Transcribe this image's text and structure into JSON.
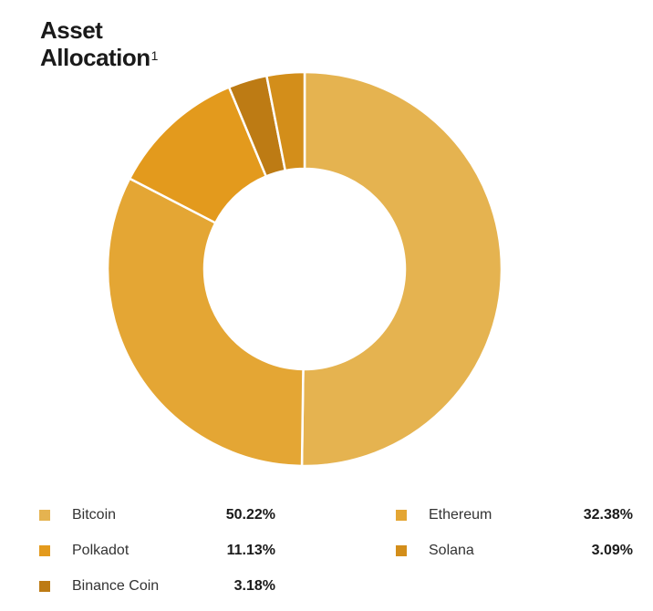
{
  "title": {
    "line1": "Asset",
    "line2": "Allocation",
    "footnote": "1"
  },
  "chart_data": {
    "type": "pie",
    "donut": true,
    "title": "Asset Allocation",
    "categories": [
      "Bitcoin",
      "Ethereum",
      "Polkadot",
      "Solana",
      "Binance Coin"
    ],
    "values": [
      50.22,
      32.38,
      11.13,
      3.09,
      3.18
    ],
    "value_labels": [
      "50.22%",
      "32.38%",
      "11.13%",
      "3.09%",
      "3.18%"
    ],
    "colors": [
      "#E5B350",
      "#E4A634",
      "#E39A1D",
      "#D38E1A",
      "#BD7B14"
    ],
    "start_angle": "12 o'clock",
    "direction": "clockwise",
    "legend_placement": "bottom"
  }
}
